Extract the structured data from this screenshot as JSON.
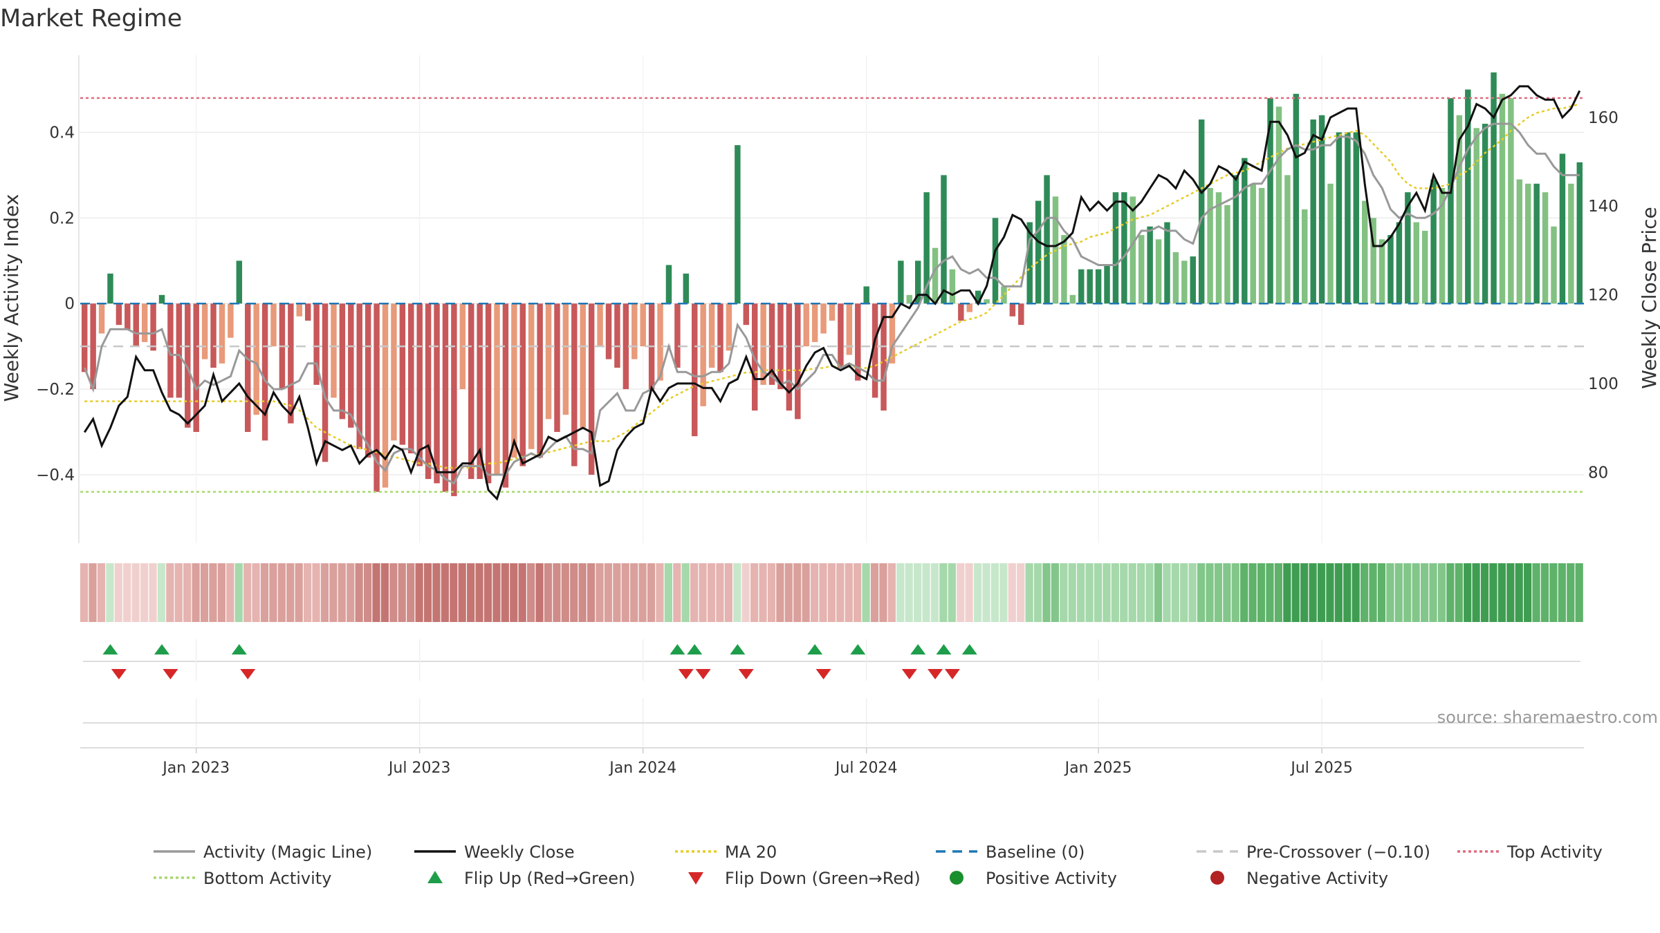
{
  "title": "Market Regime",
  "source": "source: sharemaestro.com",
  "colors": {
    "bar_dark_green": "#2e8b57",
    "bar_light_green": "#82c182",
    "bar_dark_red": "#c8585a",
    "bar_light_red": "#e89a7a",
    "close": "#111111",
    "magic": "#999999",
    "ma20": "#e6cc28",
    "baseline": "#1f77b4",
    "pre_crossover": "#c8c8c8",
    "top_activity": "#e06b80",
    "bottom_activity": "#a6d96a",
    "flip_up": "#1e9e4a",
    "flip_down": "#d62728",
    "positive_dot": "#1a8f2e",
    "negative_dot": "#b22222"
  },
  "legend": [
    {
      "label": "Activity (Magic Line)",
      "kind": "line",
      "color": "#999999",
      "dash": ""
    },
    {
      "label": "Weekly Close",
      "kind": "line",
      "color": "#111111",
      "dash": ""
    },
    {
      "label": "MA 20",
      "kind": "line",
      "color": "#e6cc28",
      "dash": "4,4"
    },
    {
      "label": "Baseline (0)",
      "kind": "line",
      "color": "#1f77b4",
      "dash": "14,10"
    },
    {
      "label": "Pre-Crossover (−0.10)",
      "kind": "line",
      "color": "#c8c8c8",
      "dash": "14,10"
    },
    {
      "label": "Top Activity",
      "kind": "line",
      "color": "#e06b80",
      "dash": "4,4"
    },
    {
      "label": "Bottom Activity",
      "kind": "line",
      "color": "#a6d96a",
      "dash": "4,4"
    },
    {
      "label": "Flip Up (Red→Green)",
      "kind": "tri-up",
      "color": "#1e9e4a",
      "dash": ""
    },
    {
      "label": "Flip Down (Green→Red)",
      "kind": "tri-down",
      "color": "#d62728",
      "dash": ""
    },
    {
      "label": "Positive Activity",
      "kind": "dot",
      "color": "#1a8f2e",
      "dash": ""
    },
    {
      "label": "Negative Activity",
      "kind": "dot",
      "color": "#b22222",
      "dash": ""
    }
  ],
  "chart_data": {
    "type": "bar",
    "title": "Market Regime",
    "ylabel_left": "Weekly Activity Index",
    "ylabel_right": "Weekly Close Price",
    "xlabel": "",
    "x_start": "2022-10-03",
    "x_ticks": [
      {
        "label": "Jan 2023",
        "date": "2023-01-02"
      },
      {
        "label": "Jul 2023",
        "date": "2023-07-03"
      },
      {
        "label": "Jan 2024",
        "date": "2024-01-01"
      },
      {
        "label": "Jul 2024",
        "date": "2024-07-01"
      },
      {
        "label": "Jan 2025",
        "date": "2025-01-06"
      },
      {
        "label": "Jul 2025",
        "date": "2025-07-07"
      }
    ],
    "ylim_left": [
      -0.56,
      0.58
    ],
    "yticks_left": [
      -0.4,
      -0.2,
      0,
      0.2,
      0.4
    ],
    "ylim_right": [
      64,
      174
    ],
    "yticks_right": [
      80,
      100,
      120,
      140,
      160
    ],
    "reference_lines": {
      "baseline": 0,
      "pre_crossover": -0.1,
      "top_activity": 0.48,
      "bottom_activity": -0.44
    },
    "activity": [
      -0.16,
      -0.2,
      -0.07,
      0.07,
      -0.05,
      -0.06,
      -0.1,
      -0.09,
      -0.11,
      0.02,
      -0.22,
      -0.22,
      -0.29,
      -0.3,
      -0.13,
      -0.15,
      -0.14,
      -0.08,
      0.1,
      -0.3,
      -0.26,
      -0.32,
      -0.1,
      -0.2,
      -0.28,
      -0.03,
      -0.04,
      -0.19,
      -0.37,
      -0.22,
      -0.27,
      -0.29,
      -0.34,
      -0.36,
      -0.44,
      -0.43,
      -0.32,
      -0.33,
      -0.35,
      -0.38,
      -0.41,
      -0.42,
      -0.44,
      -0.45,
      -0.2,
      -0.41,
      -0.41,
      -0.42,
      -0.4,
      -0.43,
      -0.36,
      -0.38,
      -0.34,
      -0.36,
      -0.27,
      -0.3,
      -0.26,
      -0.38,
      -0.29,
      -0.4,
      -0.1,
      -0.13,
      -0.15,
      -0.2,
      -0.13,
      -0.1,
      -0.2,
      -0.18,
      0.09,
      -0.15,
      0.07,
      -0.31,
      -0.24,
      -0.15,
      -0.16,
      -0.11,
      0.37,
      -0.05,
      -0.25,
      -0.19,
      -0.19,
      -0.2,
      -0.25,
      -0.27,
      -0.1,
      -0.09,
      -0.07,
      -0.04,
      -0.15,
      -0.12,
      -0.18,
      0.04,
      -0.22,
      -0.25,
      -0.14,
      0.1,
      0.02,
      0.1,
      0.26,
      0.13,
      0.3,
      0.08,
      -0.04,
      -0.02,
      0.03,
      0.01,
      0.2,
      0.04,
      -0.03,
      -0.05,
      0.19,
      0.24,
      0.3,
      0.25,
      0.16,
      0.02,
      0.08,
      0.08,
      0.08,
      0.09,
      0.26,
      0.26,
      0.25,
      0.16,
      0.18,
      0.15,
      0.19,
      0.12,
      0.1,
      0.11,
      0.43,
      0.27,
      0.26,
      0.23,
      0.3,
      0.34,
      0.28,
      0.27,
      0.48,
      0.46,
      0.3,
      0.49,
      0.22,
      0.43,
      0.44,
      0.28,
      0.4,
      0.4,
      0.4,
      0.24,
      0.2,
      0.15,
      0.16,
      0.19,
      0.26,
      0.19,
      0.17,
      0.29,
      0.27,
      0.48,
      0.44,
      0.5,
      0.41,
      0.42,
      0.54,
      0.49,
      0.48,
      0.29,
      0.28,
      0.28,
      0.26,
      0.18,
      0.35,
      0.28,
      0.33
    ],
    "magic_line": [
      -0.15,
      -0.2,
      -0.1,
      -0.06,
      -0.06,
      -0.06,
      -0.07,
      -0.07,
      -0.07,
      -0.06,
      -0.12,
      -0.12,
      -0.15,
      -0.2,
      -0.18,
      -0.19,
      -0.18,
      -0.17,
      -0.11,
      -0.13,
      -0.14,
      -0.18,
      -0.2,
      -0.2,
      -0.19,
      -0.18,
      -0.14,
      -0.14,
      -0.22,
      -0.25,
      -0.25,
      -0.26,
      -0.3,
      -0.33,
      -0.37,
      -0.39,
      -0.35,
      -0.34,
      -0.34,
      -0.36,
      -0.38,
      -0.39,
      -0.41,
      -0.42,
      -0.38,
      -0.38,
      -0.38,
      -0.4,
      -0.4,
      -0.4,
      -0.37,
      -0.36,
      -0.35,
      -0.36,
      -0.34,
      -0.32,
      -0.31,
      -0.34,
      -0.34,
      -0.35,
      -0.25,
      -0.23,
      -0.21,
      -0.25,
      -0.25,
      -0.21,
      -0.2,
      -0.17,
      -0.1,
      -0.16,
      -0.16,
      -0.17,
      -0.17,
      -0.16,
      -0.16,
      -0.14,
      -0.05,
      -0.08,
      -0.13,
      -0.16,
      -0.17,
      -0.19,
      -0.18,
      -0.2,
      -0.18,
      -0.16,
      -0.12,
      -0.12,
      -0.15,
      -0.14,
      -0.15,
      -0.16,
      -0.18,
      -0.18,
      -0.1,
      -0.07,
      -0.04,
      -0.01,
      0.04,
      0.08,
      0.1,
      0.11,
      0.08,
      0.07,
      0.08,
      0.06,
      0.06,
      0.04,
      0.04,
      0.04,
      0.15,
      0.17,
      0.2,
      0.2,
      0.17,
      0.15,
      0.11,
      0.1,
      0.09,
      0.09,
      0.09,
      0.11,
      0.14,
      0.17,
      0.17,
      0.18,
      0.17,
      0.17,
      0.15,
      0.14,
      0.2,
      0.22,
      0.23,
      0.24,
      0.25,
      0.27,
      0.28,
      0.28,
      0.31,
      0.34,
      0.36,
      0.37,
      0.36,
      0.36,
      0.37,
      0.37,
      0.39,
      0.39,
      0.38,
      0.35,
      0.3,
      0.27,
      0.22,
      0.2,
      0.21,
      0.2,
      0.2,
      0.21,
      0.23,
      0.27,
      0.32,
      0.36,
      0.39,
      0.41,
      0.42,
      0.42,
      0.42,
      0.4,
      0.37,
      0.35,
      0.35,
      0.32,
      0.3,
      0.3,
      0.3
    ],
    "weekly_close": [
      89,
      92,
      86,
      90,
      95,
      97,
      106,
      103,
      103,
      98,
      94,
      93,
      91,
      93,
      95,
      102,
      96,
      98,
      100,
      97,
      95,
      93,
      98,
      95,
      93,
      97,
      90,
      82,
      87,
      86,
      85,
      86,
      82,
      84,
      85,
      83,
      86,
      85,
      80,
      85,
      86,
      80,
      80,
      80,
      82,
      82,
      85,
      76,
      74,
      80,
      87,
      82,
      83,
      84,
      88,
      87,
      88,
      89,
      90,
      89,
      77,
      78,
      85,
      88,
      90,
      91,
      99,
      96,
      99,
      100,
      100,
      100,
      99,
      99,
      96,
      100,
      101,
      106,
      101,
      101,
      103,
      100,
      98,
      100,
      104,
      107,
      108,
      104,
      103,
      104,
      102,
      101,
      110,
      115,
      115,
      118,
      117,
      120,
      120,
      118,
      121,
      120,
      121,
      121,
      118,
      122,
      130,
      133,
      138,
      137,
      134,
      132,
      131,
      131,
      132,
      134,
      142,
      139,
      141,
      139,
      141,
      141,
      139,
      141,
      144,
      147,
      146,
      144,
      148,
      146,
      143,
      145,
      149,
      148,
      146,
      150,
      149,
      148,
      159,
      159,
      156,
      151,
      152,
      156,
      155,
      160,
      161,
      162,
      162,
      145,
      131,
      131,
      133,
      136,
      140,
      143,
      139,
      147,
      143,
      143,
      155,
      158,
      163,
      162,
      160,
      164,
      165,
      167,
      167,
      165,
      164,
      164,
      160,
      162,
      166
    ],
    "ma20_close": [
      96,
      96,
      96,
      96,
      96,
      96,
      96,
      96,
      96,
      96,
      96,
      96,
      96,
      96,
      96,
      96,
      96,
      96,
      96,
      96,
      96,
      96,
      96,
      95.5,
      95,
      94,
      92,
      90,
      89,
      88,
      87,
      86,
      85.5,
      85,
      84.5,
      84,
      83.5,
      83,
      82.5,
      82,
      82,
      81.5,
      81,
      81,
      81,
      81,
      81.5,
      82,
      82,
      82.5,
      83,
      83.5,
      84,
      84,
      84.5,
      85,
      85.5,
      86,
      86.5,
      87,
      87,
      87,
      88,
      89,
      90.5,
      92,
      93.5,
      95,
      96.5,
      97.5,
      98.5,
      99.5,
      100,
      100.5,
      101,
      101.5,
      102,
      102.5,
      102.5,
      103,
      103,
      103,
      103,
      103,
      103,
      103.5,
      103.5,
      104,
      104,
      104,
      103.5,
      103.5,
      104,
      105,
      106,
      107,
      108,
      109,
      110,
      111,
      112,
      113,
      114,
      114.5,
      115,
      116,
      118,
      120,
      122,
      124,
      126,
      127.5,
      129,
      130,
      131,
      131.5,
      132,
      133,
      133.5,
      134,
      135,
      136,
      137,
      137.5,
      138,
      139,
      140,
      141,
      142,
      143,
      144,
      145,
      146,
      147,
      147.5,
      148,
      149,
      150,
      151,
      152,
      153,
      153.5,
      154,
      154.5,
      155,
      155.5,
      156,
      156.5,
      157,
      156,
      154,
      152,
      150,
      147,
      145,
      144,
      144,
      144,
      144.5,
      145,
      147,
      148,
      150,
      152,
      153.5,
      155,
      157,
      158.5,
      160,
      161,
      161.5,
      162,
      162,
      162.5,
      163
    ],
    "flip_up_index": [
      3,
      9,
      18,
      69,
      71,
      76,
      85,
      90,
      97,
      100,
      103
    ],
    "flip_down_index": [
      4,
      10,
      19,
      70,
      72,
      77,
      86,
      96,
      99,
      101
    ]
  }
}
